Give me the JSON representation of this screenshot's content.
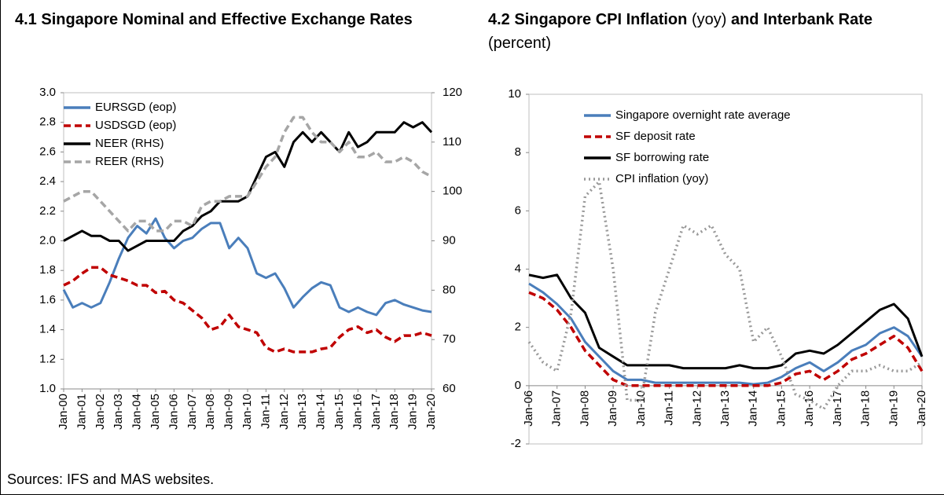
{
  "sources": "Sources: IFS and MAS websites.",
  "chart_data": {
    "charts": [
      {
        "type": "line",
        "title": [
          {
            "text": "4.1 Singapore Nominal and Effective Exchange Rates",
            "bold": true
          }
        ],
        "categories": [
          "Jan-00",
          null,
          "Jan-01",
          null,
          "Jan-02",
          null,
          "Jan-03",
          null,
          "Jan-04",
          null,
          "Jan-05",
          null,
          "Jan-06",
          null,
          "Jan-07",
          null,
          "Jan-08",
          null,
          "Jan-09",
          null,
          "Jan-10",
          null,
          "Jan-11",
          null,
          "Jan-12",
          null,
          "Jan-13",
          null,
          "Jan-14",
          null,
          "Jan-15",
          null,
          "Jan-16",
          null,
          "Jan-17",
          null,
          "Jan-18",
          null,
          "Jan-19",
          null,
          "Jan-20"
        ],
        "ylim": [
          1,
          3
        ],
        "yticks": [
          {
            "value": 1,
            "label": "1.0"
          },
          1.2,
          1.4,
          1.6,
          1.8,
          {
            "value": 2,
            "label": "2.0"
          },
          2.2,
          2.4,
          2.6,
          2.8,
          {
            "value": 3,
            "label": "3.0"
          }
        ],
        "y2lim": [
          60,
          120
        ],
        "y2ticks": [
          60,
          70,
          80,
          90,
          100,
          110,
          120
        ],
        "legend": "upper-left",
        "series": [
          {
            "name": "EURSGD (eop)",
            "color": "#4a7ebb",
            "dash": "solid",
            "values": [
              1.67,
              1.55,
              1.58,
              1.55,
              1.58,
              1.72,
              1.88,
              2.02,
              2.1,
              2.05,
              2.15,
              2.02,
              1.95,
              2.0,
              2.02,
              2.08,
              2.12,
              2.12,
              1.95,
              2.02,
              1.95,
              1.78,
              1.75,
              1.78,
              1.68,
              1.55,
              1.62,
              1.68,
              1.72,
              1.7,
              1.55,
              1.52,
              1.55,
              1.52,
              1.5,
              1.58,
              1.6,
              1.57,
              1.55,
              1.53,
              1.52
            ]
          },
          {
            "name": "USDSGD (eop)",
            "color": "#c00000",
            "dash": "dashed",
            "values": [
              1.7,
              1.73,
              1.78,
              1.82,
              1.82,
              1.77,
              1.75,
              1.73,
              1.7,
              1.7,
              1.65,
              1.66,
              1.6,
              1.58,
              1.53,
              1.48,
              1.4,
              1.42,
              1.5,
              1.42,
              1.4,
              1.38,
              1.28,
              1.25,
              1.27,
              1.25,
              1.25,
              1.25,
              1.27,
              1.28,
              1.35,
              1.4,
              1.42,
              1.38,
              1.4,
              1.35,
              1.32,
              1.36,
              1.36,
              1.38,
              1.36
            ]
          },
          {
            "name": "NEER (RHS)",
            "color": "#000000",
            "dash": "solid",
            "axis": "y2",
            "values": [
              90,
              91,
              92,
              91,
              91,
              90,
              90,
              88,
              89,
              90,
              90,
              90,
              90,
              92,
              93,
              95,
              96,
              98,
              98,
              98,
              99,
              103,
              107,
              108,
              105,
              110,
              112,
              110,
              112,
              110,
              108,
              112,
              109,
              110,
              112,
              112,
              112,
              114,
              113,
              114,
              112
            ]
          },
          {
            "name": "REER (RHS)",
            "color": "#a6a6a6",
            "dash": "dashed",
            "axis": "y2",
            "values": [
              98,
              99,
              100,
              100,
              98,
              96,
              94,
              92,
              94,
              94,
              92,
              92,
              94,
              94,
              93,
              97,
              98,
              98,
              99,
              99,
              99,
              102,
              105,
              107,
              112,
              115,
              115,
              112,
              110,
              110,
              108,
              110,
              107,
              107,
              108,
              106,
              106,
              107,
              106,
              104,
              103
            ]
          }
        ]
      },
      {
        "type": "line",
        "title": [
          {
            "text": "4.2 Singapore CPI Inflation",
            "bold": true
          },
          {
            "text": "(yoy)",
            "bold": false
          },
          {
            "text": "and Interbank Rate",
            "bold": true
          },
          {
            "text": "(percent)",
            "bold": false
          }
        ],
        "categories": [
          "Jan-06",
          null,
          "Jan-07",
          null,
          "Jan-08",
          null,
          "Jan-09",
          null,
          "Jan-10",
          null,
          "Jan-11",
          null,
          "Jan-12",
          null,
          "Jan-13",
          null,
          "Jan-14",
          null,
          "Jan-15",
          null,
          "Jan-16",
          null,
          "Jan-17",
          null,
          "Jan-18",
          null,
          "Jan-19",
          null,
          "Jan-20"
        ],
        "ylim": [
          -2,
          10
        ],
        "yticks": [
          -2,
          0,
          2,
          4,
          6,
          8,
          10
        ],
        "legend": "upper-right",
        "series": [
          {
            "name": "Singapore overnight rate average",
            "color": "#4a7ebb",
            "dash": "solid",
            "values": [
              3.5,
              3.2,
              2.8,
              2.3,
              1.5,
              1.0,
              0.5,
              0.2,
              0.2,
              0.1,
              0.1,
              0.1,
              0.1,
              0.1,
              0.1,
              0.1,
              0.05,
              0.1,
              0.3,
              0.6,
              0.8,
              0.5,
              0.8,
              1.2,
              1.4,
              1.8,
              2.0,
              1.7,
              1.0
            ]
          },
          {
            "name": "SF deposit rate",
            "color": "#c00000",
            "dash": "dashed",
            "values": [
              3.2,
              3.0,
              2.6,
              2.0,
              1.2,
              0.7,
              0.2,
              0,
              0,
              0,
              0,
              0,
              0,
              0,
              0,
              0,
              0,
              0,
              0.1,
              0.4,
              0.5,
              0.2,
              0.5,
              0.9,
              1.1,
              1.4,
              1.7,
              1.3,
              0.5
            ]
          },
          {
            "name": "SF borrowing rate",
            "color": "#000000",
            "dash": "solid",
            "values": [
              3.8,
              3.7,
              3.8,
              3.0,
              2.5,
              1.3,
              1.0,
              0.7,
              0.7,
              0.7,
              0.7,
              0.6,
              0.6,
              0.6,
              0.6,
              0.7,
              0.6,
              0.6,
              0.7,
              1.1,
              1.2,
              1.1,
              1.4,
              1.8,
              2.2,
              2.6,
              2.8,
              2.3,
              1.0
            ]
          },
          {
            "name": "CPI inflation (yoy)",
            "color": "#999999",
            "dash": "dotted",
            "values": [
              1.5,
              0.8,
              0.5,
              2.5,
              6.5,
              7.0,
              4.0,
              -0.5,
              -0.5,
              2.5,
              4.0,
              5.5,
              5.2,
              5.5,
              4.5,
              4.0,
              1.5,
              2.0,
              1.0,
              -0.3,
              -0.5,
              -0.8,
              0,
              0.5,
              0.5,
              0.7,
              0.5,
              0.5,
              0.8
            ]
          }
        ]
      }
    ]
  }
}
